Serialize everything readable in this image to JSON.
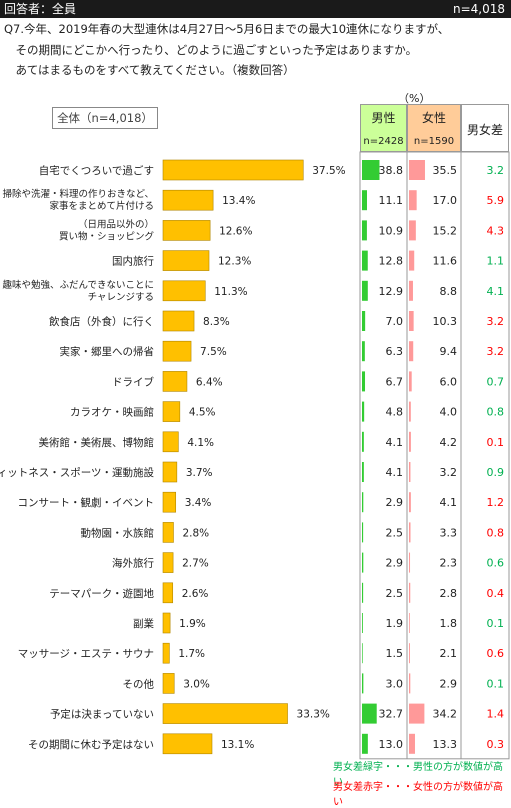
{
  "header": {
    "respondent": "回答者：全員",
    "n": "n=4,018"
  },
  "question": [
    "Q7.今年、2019年春の大型連休は4月27日～5月6日までの最大10連休になりますが、",
    "　その期間にどこかへ行ったり、どのように過ごすといった予定はありますか。",
    "　あてはまるものをすべて教えてください。（複数回答）"
  ],
  "all_label": "全体（n=4,018）",
  "unit": "（%）",
  "table_headers": {
    "male": "男性",
    "female": "女性",
    "diff": "男女差",
    "male_n": "n=2428",
    "female_n": "n=1590"
  },
  "legend": {
    "green": "男女差緑字・・・男性の方が数値が高い",
    "red": "男女差赤字・・・女性の方が数値が高い"
  },
  "colors": {
    "bar": "#FFC000",
    "male_bar": "#33CC33",
    "female_bar": "#FF9999",
    "male_head": "#CCFF99",
    "female_head": "#FFCC99",
    "green_text": "#00B050",
    "red_text": "#FF0000"
  },
  "chart_data": {
    "type": "bar",
    "categories": [
      [
        "自宅でくつろいで過ごす"
      ],
      [
        "掃除や洗濯・料理の作りおきなど、",
        "家事をまとめて片付ける"
      ],
      [
        "（日用品以外の）",
        "買い物・ショッピング"
      ],
      [
        "国内旅行"
      ],
      [
        "趣味や勉強、ふだんできないことに",
        "チャレンジする"
      ],
      [
        "飲食店（外食）に行く"
      ],
      [
        "実家・郷里への帰省"
      ],
      [
        "ドライブ"
      ],
      [
        "カラオケ・映画館"
      ],
      [
        "美術館・美術展、博物館"
      ],
      [
        "フィットネス・スポーツ・運動施設"
      ],
      [
        "コンサート・観劇・イベント"
      ],
      [
        "動物園・水族館"
      ],
      [
        "海外旅行"
      ],
      [
        "テーマパーク・遊園地"
      ],
      [
        "副業"
      ],
      [
        "マッサージ・エステ・サウナ"
      ],
      [
        "その他"
      ],
      [
        "予定は決まっていない"
      ],
      [
        "その期間に休む予定はない"
      ]
    ],
    "values": [
      37.5,
      13.4,
      12.6,
      12.3,
      11.3,
      8.3,
      7.5,
      6.4,
      4.5,
      4.1,
      3.7,
      3.4,
      2.8,
      2.7,
      2.6,
      1.9,
      1.7,
      3.0,
      33.3,
      13.1
    ],
    "labels": [
      "37.5%",
      "13.4%",
      "12.6%",
      "12.3%",
      "11.3%",
      "8.3%",
      "7.5%",
      "6.4%",
      "4.5%",
      "4.1%",
      "3.7%",
      "3.4%",
      "2.8%",
      "2.7%",
      "2.6%",
      "1.9%",
      "1.7%",
      "3.0%",
      "33.3%",
      "13.1%"
    ],
    "male": [
      38.8,
      11.1,
      10.9,
      12.8,
      12.9,
      7.0,
      6.3,
      6.7,
      4.8,
      4.1,
      4.1,
      2.9,
      2.5,
      2.9,
      2.5,
      1.9,
      1.5,
      3.0,
      32.7,
      13.0
    ],
    "male_labels": [
      "38.8",
      "11.1",
      "10.9",
      "12.8",
      "12.9",
      "7.0",
      "6.3",
      "6.7",
      "4.8",
      "4.1",
      "4.1",
      "2.9",
      "2.5",
      "2.9",
      "2.5",
      "1.9",
      "1.5",
      "3.0",
      "32.7",
      "13.0"
    ],
    "female": [
      35.5,
      17.0,
      15.2,
      11.6,
      8.8,
      10.3,
      9.4,
      6.0,
      4.0,
      4.2,
      3.2,
      4.1,
      3.3,
      2.3,
      2.8,
      1.8,
      2.1,
      2.9,
      34.2,
      13.3
    ],
    "female_labels": [
      "35.5",
      "17.0",
      "15.2",
      "11.6",
      "8.8",
      "10.3",
      "9.4",
      "6.0",
      "4.0",
      "4.2",
      "3.2",
      "4.1",
      "3.3",
      "2.3",
      "2.8",
      "1.8",
      "2.1",
      "2.9",
      "34.2",
      "13.3"
    ],
    "diff": [
      "3.2",
      "5.9",
      "4.3",
      "1.1",
      "4.1",
      "3.2",
      "3.2",
      "0.7",
      "0.8",
      "0.1",
      "0.9",
      "1.2",
      "0.8",
      "0.6",
      "0.4",
      "0.1",
      "0.6",
      "0.1",
      "1.4",
      "0.3"
    ],
    "diff_color": [
      "green",
      "red",
      "red",
      "green",
      "green",
      "red",
      "red",
      "green",
      "green",
      "red",
      "green",
      "red",
      "red",
      "green",
      "red",
      "green",
      "red",
      "green",
      "red",
      "red"
    ]
  }
}
